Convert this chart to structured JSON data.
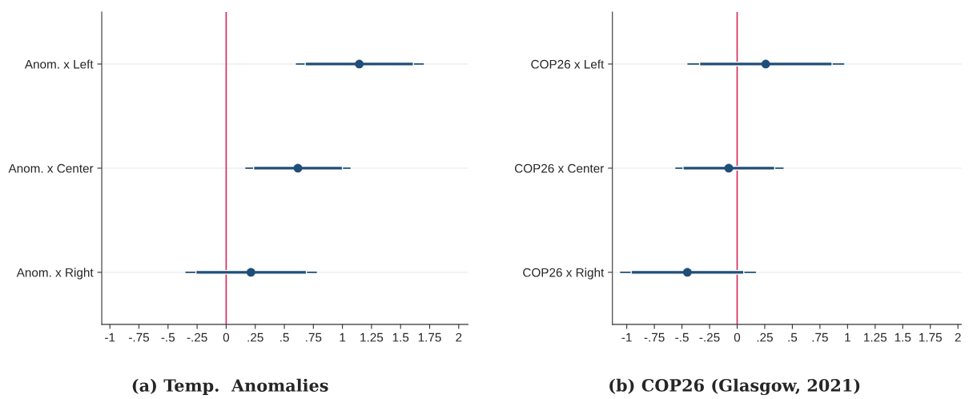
{
  "chart_data": [
    {
      "type": "scatter",
      "orientation": "horizontal",
      "title": "(a) Temp.  Anomalies",
      "categories": [
        "Anom. x Left",
        "Anom. x Center",
        "Anom. x Right"
      ],
      "series": [
        {
          "type": "bar",
          "color": "#1f4e79",
          "base": [
            0.68,
            0.236,
            -0.26
          ],
          "values": [
            0.93,
            0.764,
            0.95
          ]
        },
        {
          "color": "#1f4e79",
          "marker": "circle",
          "values": [
            1.145,
            0.617,
            0.213
          ],
          "errors": [
            [
              0.6,
              1.7
            ],
            [
              0.165,
              1.07
            ],
            [
              -0.35,
              0.78
            ]
          ]
        }
      ],
      "xlim": [
        -1.07,
        2.08
      ],
      "xticks": [
        -1,
        {
          "value": -0.75,
          "label": "-.75"
        },
        {
          "value": -0.5,
          "label": "-.5"
        },
        {
          "value": -0.25,
          "label": "-.25"
        },
        0,
        {
          "value": 0.25,
          "label": ".25"
        },
        {
          "value": 0.5,
          "label": ".5"
        },
        {
          "value": 0.75,
          "label": ".75"
        },
        1,
        1.25,
        1.5,
        1.75,
        2
      ],
      "ref_lines": [
        {
          "axis": "x",
          "value": 0,
          "color": "#d62d5a"
        }
      ],
      "grid": "y",
      "legend": false
    },
    {
      "type": "scatter",
      "orientation": "horizontal",
      "title": "(b) COP26 (Glasgow, 2021)",
      "categories": [
        "COP26 x Left",
        "COP26 x Center",
        "COP26 x Right"
      ],
      "series": [
        {
          "type": "bar",
          "color": "#1f4e79",
          "base": [
            -0.34,
            -0.49,
            -0.96
          ],
          "values": [
            1.2,
            0.83,
            1.02
          ]
        },
        {
          "color": "#1f4e79",
          "marker": "circle",
          "values": [
            0.259,
            -0.076,
            -0.451
          ],
          "errors": [
            [
              -0.45,
              0.97
            ],
            [
              -0.56,
              0.42
            ],
            [
              -1.06,
              0.17
            ]
          ]
        }
      ],
      "xlim": [
        -1.13,
        2.03
      ],
      "xticks": [
        -1,
        {
          "value": -0.75,
          "label": "-.75"
        },
        {
          "value": -0.5,
          "label": "-.5"
        },
        {
          "value": -0.25,
          "label": "-.25"
        },
        0,
        {
          "value": 0.25,
          "label": ".25"
        },
        {
          "value": 0.5,
          "label": ".5"
        },
        {
          "value": 0.75,
          "label": ".75"
        },
        1,
        1.25,
        1.5,
        1.75,
        2
      ],
      "ref_lines": [
        {
          "axis": "x",
          "value": 0,
          "color": "#d62d5a"
        }
      ],
      "grid": "y",
      "legend": false
    }
  ]
}
